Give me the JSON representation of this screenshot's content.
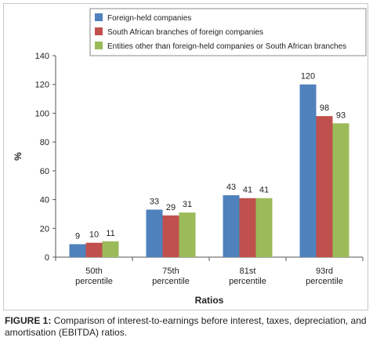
{
  "chart_data": {
    "type": "bar",
    "xlabel": "Ratios",
    "ylabel": "%",
    "ylim": [
      0,
      140
    ],
    "yticks": [
      0,
      20,
      40,
      60,
      80,
      100,
      120,
      140
    ],
    "categories": [
      [
        "50th",
        "percentile"
      ],
      [
        "75th",
        "percentile"
      ],
      [
        "81st",
        "percentile"
      ],
      [
        "93rd",
        "percentile"
      ]
    ],
    "series": [
      {
        "name": "Foreign-held companies",
        "color": "#4f81bd",
        "values": [
          9,
          33,
          43,
          120
        ]
      },
      {
        "name": "South African branches of foreign companies",
        "color": "#c0504d",
        "values": [
          10,
          29,
          41,
          98
        ]
      },
      {
        "name": "Entities other than foreign-held companies or South African branches",
        "color": "#9bbb59",
        "values": [
          11,
          31,
          41,
          93
        ]
      }
    ],
    "legend_position": "top",
    "grid": false
  },
  "caption": {
    "label": "FIGURE 1:",
    "text": " Comparison of interest-to-earnings before interest, taxes, depreciation, and amortisation (EBITDA) ratios."
  }
}
